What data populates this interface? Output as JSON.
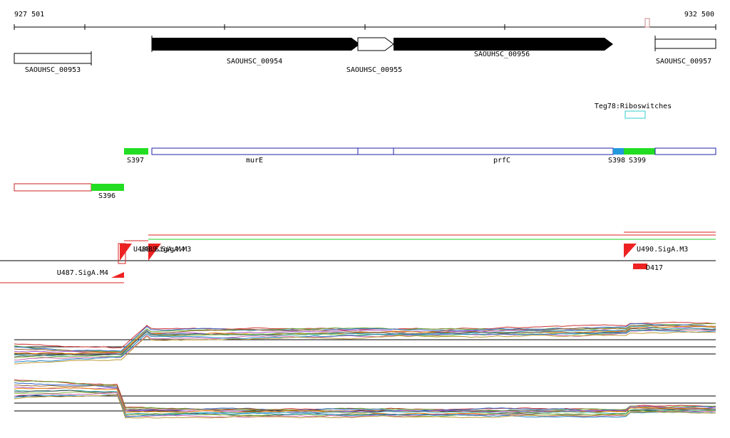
{
  "header": {
    "start": "927 501",
    "end": "932 500"
  },
  "genes": [
    {
      "label": "SAOUHSC_00953"
    },
    {
      "label": "SAOUHSC_00954"
    },
    {
      "label": "SAOUHSC_00955"
    },
    {
      "label": "SAOUHSC_00956"
    },
    {
      "label": "SAOUHSC_00957"
    }
  ],
  "riboswitch": {
    "label": "Teg78:Riboswitches"
  },
  "segments": [
    {
      "label": "S397"
    },
    {
      "label": "murE"
    },
    {
      "label": "prfC"
    },
    {
      "label": "S398"
    },
    {
      "label": "S399"
    },
    {
      "label": "S396"
    }
  ],
  "promoters": [
    {
      "label": "U487.SigA.M4"
    },
    {
      "label": "U488.SigA.M4"
    },
    {
      "label": "U489.SigA.M3"
    },
    {
      "label": "U490.SigA.M3"
    },
    {
      "label": "D417"
    }
  ]
}
